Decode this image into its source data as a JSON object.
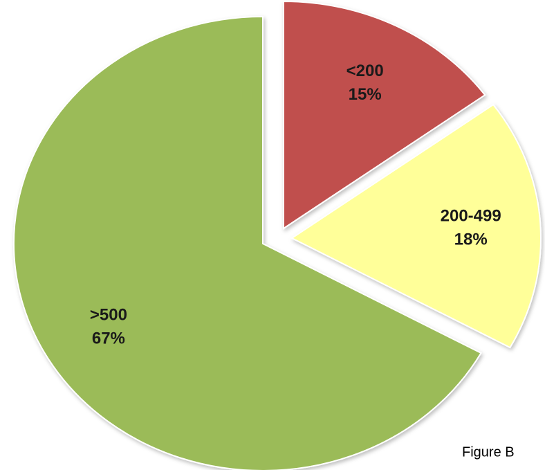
{
  "chart_data": {
    "type": "pie",
    "annotation": "Figure B",
    "categories": [
      "<200",
      "200-499",
      ">500"
    ],
    "values": [
      15,
      18,
      67
    ],
    "value_labels": [
      "15%",
      "18%",
      "67%"
    ],
    "colors": [
      "#c0504d",
      "#ffff99",
      "#9bbb59"
    ]
  }
}
